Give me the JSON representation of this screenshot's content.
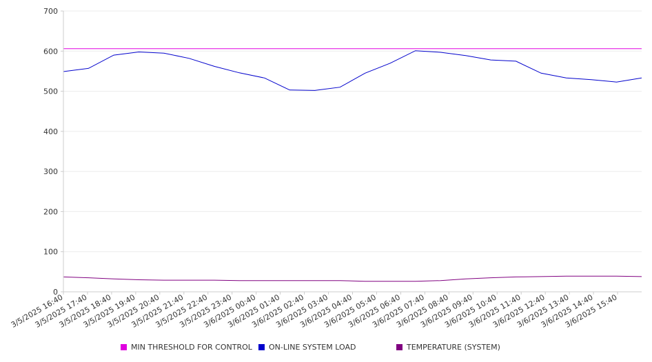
{
  "chart_data": {
    "type": "line",
    "title": "",
    "xlabel": "",
    "ylabel": "",
    "ylim": [
      0,
      700
    ],
    "yticks": [
      0,
      100,
      200,
      300,
      400,
      500,
      600,
      700
    ],
    "grid": true,
    "legend_position": "bottom",
    "x_tick_labels": [
      "3/5/2025 16:40",
      "3/5/2025 17:40",
      "3/5/2025 18:40",
      "3/5/2025 19:40",
      "3/5/2025 20:40",
      "3/5/2025 21:40",
      "3/5/2025 22:40",
      "3/5/2025 23:40",
      "3/6/2025 00:40",
      "3/6/2025 01:40",
      "3/6/2025 02:40",
      "3/6/2025 03:40",
      "3/6/2025 04:40",
      "3/6/2025 05:40",
      "3/6/2025 06:40",
      "3/6/2025 07:40",
      "3/6/2025 08:40",
      "3/6/2025 09:40",
      "3/6/2025 10:40",
      "3/6/2025 11:40",
      "3/6/2025 12:40",
      "3/6/2025 13:40",
      "3/6/2025 14:40",
      "3/6/2025 15:40"
    ],
    "series": [
      {
        "name": "MIN THRESHOLD FOR CONTROL",
        "color": "#e000e0",
        "values": [
          606,
          606,
          606,
          606,
          606,
          606,
          606,
          606,
          606,
          606,
          606,
          606,
          606,
          606,
          606,
          606,
          606,
          606,
          606,
          606,
          606,
          606,
          606,
          606
        ]
      },
      {
        "name": "ON-LINE SYSTEM LOAD",
        "color": "#0000cc",
        "values": [
          549,
          557,
          590,
          598,
          595,
          582,
          562,
          546,
          533,
          503,
          502,
          510,
          545,
          570,
          601,
          597,
          589,
          578,
          575,
          545,
          533,
          529,
          523,
          533
        ]
      },
      {
        "name": "TEMPERATURE (SYSTEM)",
        "color": "#800080",
        "values": [
          37,
          35,
          32,
          30,
          29,
          29,
          29,
          28,
          28,
          28,
          28,
          28,
          26,
          26,
          26,
          28,
          32,
          35,
          37,
          38,
          39,
          39,
          39,
          38
        ]
      }
    ]
  }
}
